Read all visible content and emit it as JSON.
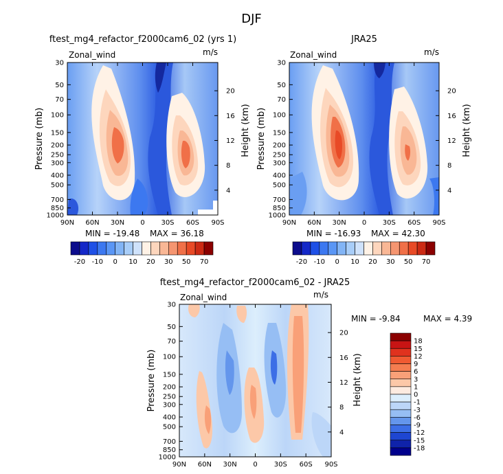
{
  "header": {
    "season": "DJF"
  },
  "chart_data": [
    {
      "type": "heatmap",
      "title": "ftest_mg4_refactor_f2000cam6_02 (yrs 1)",
      "variable": "Zonal_wind",
      "units": "m/s",
      "xlabel": "",
      "ylabel": "Pressure (mb)",
      "ylabel_right": "Height (km)",
      "xticks": [
        "90N",
        "60N",
        "30N",
        "0",
        "30S",
        "60S",
        "90S"
      ],
      "yticks": [
        "30",
        "50",
        "70",
        "100",
        "150",
        "200",
        "250",
        "300",
        "400",
        "500",
        "700",
        "850",
        "1000"
      ],
      "height_ticks": [
        "20",
        "16",
        "12",
        "8",
        "4"
      ],
      "min_label": "MIN = -19.48",
      "max_label": "MAX = 36.18",
      "min": -19.48,
      "max": 36.18,
      "colorbar": {
        "orientation": "horizontal",
        "labels": [
          "-20",
          "-10",
          "0",
          "10",
          "20",
          "30",
          "50",
          "70"
        ],
        "colors": [
          "#0c0c8c",
          "#1428c8",
          "#1e50e6",
          "#3c78f0",
          "#5a96f5",
          "#82b4f5",
          "#a8cdf8",
          "#cfe2fb",
          "#fff2e6",
          "#fdd6bd",
          "#f9b795",
          "#f59570",
          "#f07048",
          "#e84a26",
          "#cc2a14",
          "#8b0000"
        ]
      }
    },
    {
      "type": "heatmap",
      "title": "JRA25",
      "variable": "Zonal_wind",
      "units": "m/s",
      "xlabel": "",
      "ylabel": "Pressure (mb)",
      "ylabel_right": "Height (km)",
      "xticks": [
        "90N",
        "60N",
        "30N",
        "0",
        "30S",
        "60S",
        "90S"
      ],
      "yticks": [
        "30",
        "50",
        "70",
        "100",
        "150",
        "200",
        "250",
        "300",
        "400",
        "500",
        "700",
        "850",
        "1000"
      ],
      "height_ticks": [
        "20",
        "16",
        "12",
        "8",
        "4"
      ],
      "min_label": "MIN = -16.93",
      "max_label": "MAX = 42.30",
      "min": -16.93,
      "max": 42.3,
      "colorbar": {
        "orientation": "horizontal",
        "labels": [
          "-20",
          "-10",
          "0",
          "10",
          "20",
          "30",
          "50",
          "70"
        ],
        "colors": [
          "#0c0c8c",
          "#1428c8",
          "#1e50e6",
          "#3c78f0",
          "#5a96f5",
          "#82b4f5",
          "#a8cdf8",
          "#cfe2fb",
          "#fff2e6",
          "#fdd6bd",
          "#f9b795",
          "#f59570",
          "#f07048",
          "#e84a26",
          "#cc2a14",
          "#8b0000"
        ]
      }
    },
    {
      "type": "heatmap",
      "title": "ftest_mg4_refactor_f2000cam6_02 - JRA25",
      "variable": "Zonal_wind",
      "units": "m/s",
      "xlabel": "",
      "ylabel": "Pressure (mb)",
      "ylabel_right": "Height (km)",
      "xticks": [
        "90N",
        "60N",
        "30N",
        "0",
        "30S",
        "60S",
        "90S"
      ],
      "yticks": [
        "30",
        "50",
        "70",
        "100",
        "150",
        "200",
        "250",
        "300",
        "400",
        "500",
        "700",
        "850",
        "1000"
      ],
      "height_ticks": [
        "20",
        "16",
        "12",
        "8",
        "4"
      ],
      "min_label": "MIN =    -9.84",
      "max_label": "MAX =    4.39",
      "min": -9.84,
      "max": 4.39,
      "colorbar": {
        "orientation": "vertical",
        "labels": [
          "18",
          "15",
          "12",
          "9",
          "6",
          "3",
          "1",
          "0",
          "-1",
          "-3",
          "-6",
          "-9",
          "-12",
          "-15",
          "-18"
        ],
        "colors": [
          "#8b0000",
          "#c81414",
          "#e0321e",
          "#f05a32",
          "#f57d50",
          "#f9a078",
          "#fcc8a8",
          "#fdebe0",
          "#dceefc",
          "#bcd6f8",
          "#96bef4",
          "#6496ec",
          "#3c6ee6",
          "#1e46d2",
          "#0f23aa",
          "#00008c"
        ]
      }
    }
  ]
}
